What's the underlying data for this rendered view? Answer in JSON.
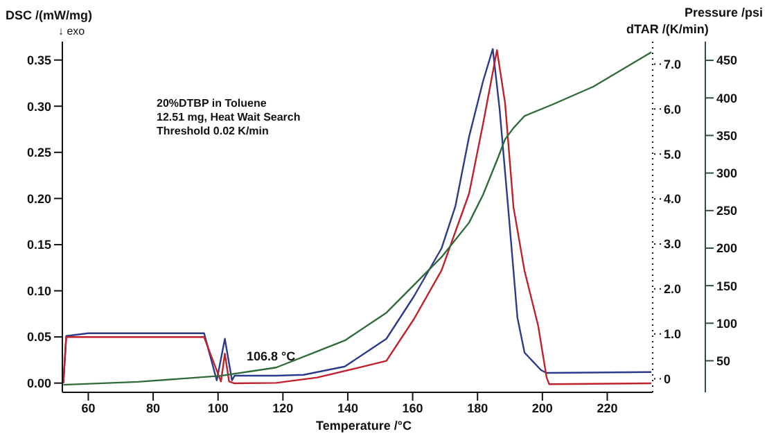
{
  "chart_data": {
    "type": "line",
    "xlabel": "Temperature /°C",
    "ylabel": "DSC /(mW/mg)",
    "y2label": "dTAR /(K/min)",
    "y3label": "Pressure /psi",
    "annotations": [
      "↓ exo",
      "20%DTBP in Toluene",
      "12.51 mg, Heat Wait Search",
      "Threshold 0.02 K/min",
      "106.8 °C"
    ],
    "xlim": [
      52,
      234
    ],
    "xticks": [
      60,
      80,
      100,
      120,
      140,
      160,
      180,
      200,
      220
    ],
    "ylim": [
      -0.01,
      0.37
    ],
    "yticks": [
      {
        "value": 0,
        "label": "0.00"
      },
      {
        "value": 0.05,
        "label": "0.05"
      },
      {
        "value": 0.1,
        "label": "0.10"
      },
      {
        "value": 0.15,
        "label": "0.15"
      },
      {
        "value": 0.2,
        "label": "0.20"
      },
      {
        "value": 0.25,
        "label": "0.25"
      },
      {
        "value": 0.3,
        "label": "0.30"
      },
      {
        "value": 0.35,
        "label": "0.35"
      }
    ],
    "y2lim": [
      -0.3,
      7.5
    ],
    "y2ticks": [
      0,
      {
        "value": 1,
        "label": "1.0"
      },
      {
        "value": 2,
        "label": "2.0"
      },
      {
        "value": 3,
        "label": "3.0"
      },
      {
        "value": 4,
        "label": "4.0"
      },
      {
        "value": 5,
        "label": "5.0"
      },
      {
        "value": 6,
        "label": "6.0"
      },
      {
        "value": 7,
        "label": "7.0"
      }
    ],
    "y3lim": [
      8,
      475
    ],
    "y3ticks": [
      50,
      100,
      150,
      200,
      250,
      300,
      350,
      400,
      450
    ],
    "marker": "none",
    "line_style": "solid",
    "series": [
      {
        "color": "#2b3a8a",
        "x": [
          52.3,
          53.2,
          60,
          80,
          95.7,
          99.6,
          102.1,
          104.3,
          105.1,
          117.9,
          126.4,
          139.1,
          151.9,
          160.4,
          168.9,
          173.2,
          177.4,
          181.7,
          184.7,
          186.8,
          189.4,
          192.3,
          194.5,
          199.6,
          201.3,
          233.6
        ],
        "values": [
          0,
          0.051,
          0.054,
          0.054,
          0.054,
          0.003,
          0.048,
          0.003,
          0.008,
          0.008,
          0.009,
          0.018,
          0.048,
          0.094,
          0.146,
          0.192,
          0.267,
          0.327,
          0.362,
          0.297,
          0.192,
          0.071,
          0.033,
          0.014,
          0.011,
          0.012
        ]
      },
      {
        "color": "#c0202a",
        "axis": "y2",
        "x": [
          52.3,
          53.2,
          60,
          80,
          95.7,
          97.4,
          100.9,
          102.1,
          103.4,
          105.1,
          117.9,
          130.6,
          143.4,
          151.9,
          160.4,
          168.9,
          177.4,
          181.7,
          186,
          188.5,
          191.1,
          194.5,
          198.7,
          201.3,
          202.1,
          233.6
        ],
        "values": [
          -0.1,
          0.93,
          0.93,
          0.93,
          0.93,
          0.6,
          -0.06,
          0.56,
          -0.06,
          -0.1,
          -0.09,
          0.03,
          0.25,
          0.4,
          1.33,
          2.41,
          4.12,
          5.67,
          7.31,
          6.13,
          3.81,
          2.4,
          1.18,
          0.03,
          -0.12,
          -0.1
        ]
      },
      {
        "color": "#2f6b3a",
        "axis": "y3",
        "x": [
          52.3,
          75.3,
          100.9,
          117.9,
          139.1,
          151.9,
          160.4,
          168.9,
          177.4,
          181.7,
          186,
          188.5,
          191.1,
          194.5,
          203,
          215.7,
          233.6
        ],
        "values": [
          18,
          22,
          30,
          41,
          77,
          114,
          151,
          188,
          234,
          271,
          317,
          345,
          360,
          376,
          391,
          415,
          461
        ]
      }
    ]
  }
}
